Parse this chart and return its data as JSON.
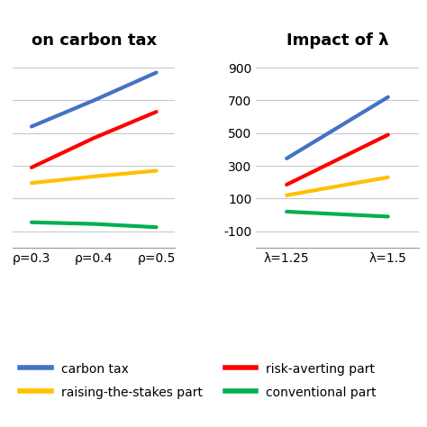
{
  "left_title": "on carbon tax",
  "right_title": "Impact of λ",
  "left_xticks": [
    "ρ=0.3",
    "ρ=0.4",
    "ρ=0.5"
  ],
  "right_xticks": [
    "λ=1.25",
    "λ=1.5"
  ],
  "right_yticks": [
    -100,
    100,
    300,
    500,
    700,
    900
  ],
  "ylim": [
    -200,
    1000
  ],
  "left_data": {
    "carbon_tax": [
      540,
      700,
      870
    ],
    "risk_averting": [
      290,
      470,
      630
    ],
    "raising_stakes": [
      195,
      235,
      270
    ],
    "conventional": [
      -45,
      -55,
      -75
    ]
  },
  "right_data": {
    "carbon_tax": [
      345,
      720
    ],
    "risk_averting": [
      185,
      490
    ],
    "raising_stakes": [
      120,
      230
    ],
    "conventional": [
      20,
      -10
    ]
  },
  "colors": {
    "carbon_tax": "#4472C4",
    "risk_averting": "#FF0000",
    "raising_stakes": "#FFC000",
    "conventional": "#00B050"
  },
  "legend_labels": {
    "carbon_tax": "carbon tax",
    "risk_averting": "risk-averting part",
    "raising_stakes": "raising-the-stakes part",
    "conventional": "conventional part"
  },
  "linewidth": 3.0,
  "bg_color": "#FFFFFF",
  "grid_color": "#C8C8C8",
  "title_fontsize": 13,
  "tick_fontsize": 10,
  "legend_fontsize": 10
}
